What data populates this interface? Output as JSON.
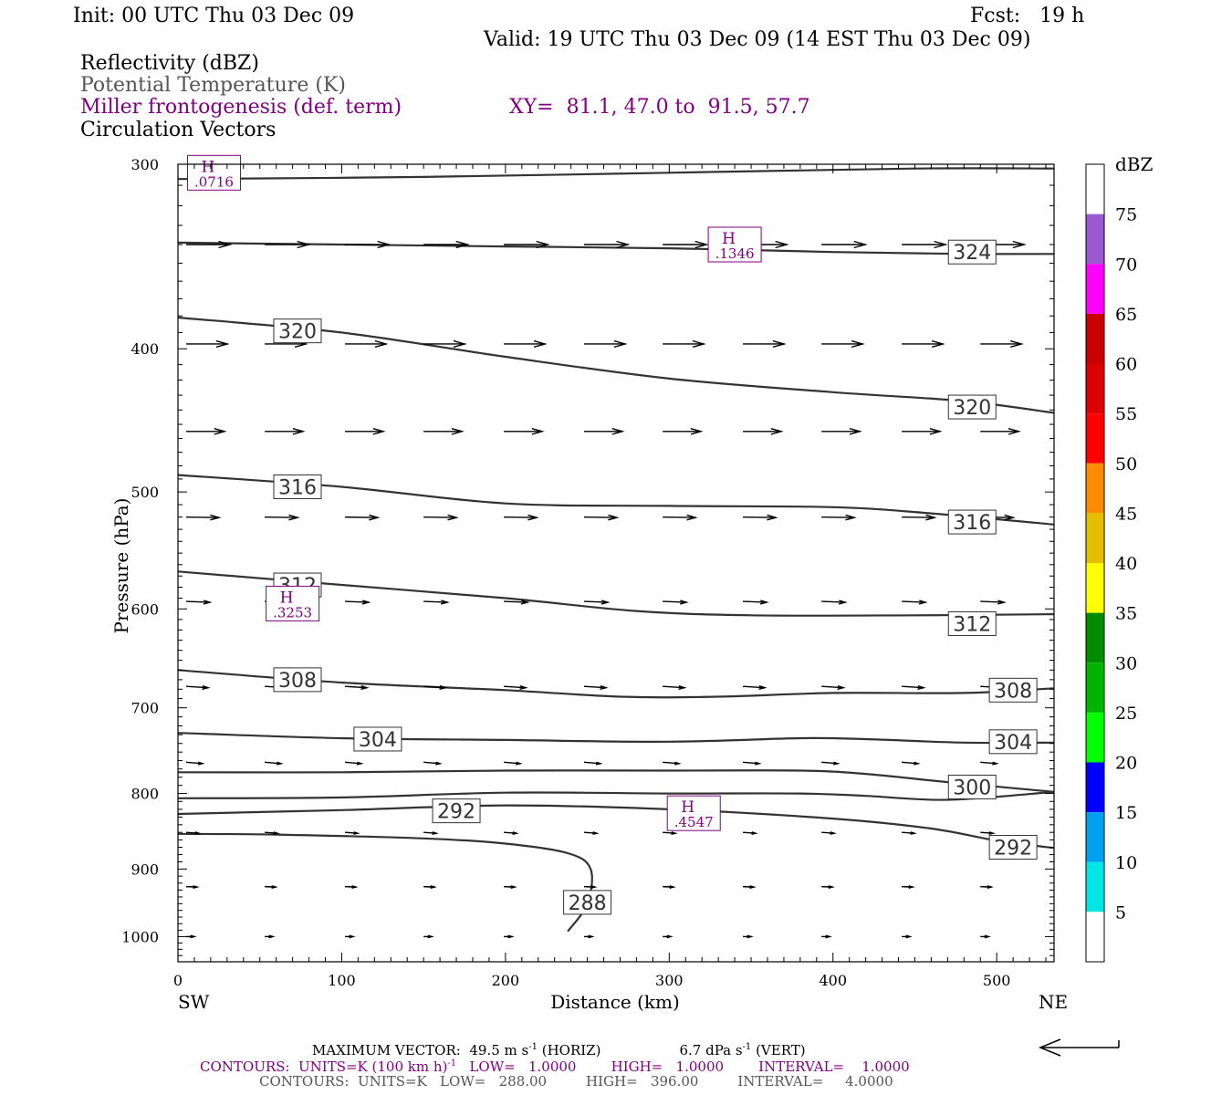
{
  "header": {
    "init": "Init: 00 UTC Thu 03 Dec 09",
    "fcst": "Fcst:   19 h",
    "valid": "Valid: 19 UTC Thu 03 Dec 09 (14 EST Thu 03 Dec 09)",
    "field1": "Reflectivity (dBZ)",
    "field2": "Potential Temperature (K)",
    "field3": "Miller frontogenesis (def. term)",
    "xy": "XY=  81.1, 47.0 to  91.5, 57.7",
    "field4": "Circulation Vectors"
  },
  "colors": {
    "purple": "#800080",
    "gray": "#555555",
    "contour": "#333333"
  },
  "chart_data": {
    "type": "cross-section",
    "xlabel": "Distance (km)",
    "ylabel": "Pressure (hPa)",
    "xlim": [
      0,
      535
    ],
    "ylim": [
      1040,
      300
    ],
    "y_scale": "log (inverted)",
    "x_ticks": [
      0,
      100,
      200,
      300,
      400,
      500
    ],
    "y_ticks": [
      300,
      400,
      500,
      600,
      700,
      800,
      900,
      1000
    ],
    "x_left_label": "SW",
    "x_right_label": "NE",
    "contour_series_name": "Potential Temperature (K)",
    "contours": [
      {
        "label": "288",
        "points": [
          [
            0,
            852
          ],
          [
            60,
            853
          ],
          [
            150,
            858
          ],
          [
            200,
            865
          ],
          [
            238,
            878
          ],
          [
            252,
            900
          ],
          [
            250,
            950
          ],
          [
            238,
            992
          ]
        ]
      },
      {
        "label": "292",
        "points": [
          [
            0,
            826
          ],
          [
            100,
            821
          ],
          [
            200,
            815
          ],
          [
            300,
            820
          ],
          [
            400,
            832
          ],
          [
            460,
            845
          ],
          [
            500,
            861
          ],
          [
            535,
            871
          ]
        ]
      },
      {
        "label": "300",
        "points": [
          [
            0,
            806
          ],
          [
            100,
            805
          ],
          [
            200,
            799
          ],
          [
            300,
            800
          ],
          [
            380,
            800
          ],
          [
            420,
            803
          ],
          [
            470,
            808
          ],
          [
            535,
            798
          ]
        ]
      },
      {
        "label": "300",
        "points": [
          [
            0,
            774
          ],
          [
            100,
            774
          ],
          [
            200,
            772
          ],
          [
            300,
            772
          ],
          [
            380,
            772
          ],
          [
            420,
            776
          ],
          [
            470,
            786
          ],
          [
            535,
            798
          ]
        ]
      },
      {
        "label": "304",
        "points": [
          [
            0,
            728
          ],
          [
            100,
            734
          ],
          [
            200,
            736
          ],
          [
            300,
            738
          ],
          [
            380,
            734
          ],
          [
            420,
            735
          ],
          [
            480,
            739
          ],
          [
            535,
            739
          ]
        ]
      },
      {
        "label": "308",
        "points": [
          [
            0,
            660
          ],
          [
            100,
            673
          ],
          [
            200,
            681
          ],
          [
            270,
            688
          ],
          [
            330,
            688
          ],
          [
            400,
            684
          ],
          [
            480,
            684
          ],
          [
            535,
            679
          ]
        ]
      },
      {
        "label": "312",
        "points": [
          [
            0,
            566
          ],
          [
            100,
            578
          ],
          [
            200,
            590
          ],
          [
            280,
            602
          ],
          [
            350,
            606
          ],
          [
            450,
            606
          ],
          [
            535,
            605
          ]
        ]
      },
      {
        "label": "316",
        "points": [
          [
            0,
            487
          ],
          [
            100,
            496
          ],
          [
            200,
            509
          ],
          [
            300,
            511
          ],
          [
            400,
            512
          ],
          [
            460,
            517
          ],
          [
            535,
            526
          ]
        ]
      },
      {
        "label": "320",
        "points": [
          [
            0,
            381
          ],
          [
            100,
            390
          ],
          [
            200,
            405
          ],
          [
            300,
            419
          ],
          [
            400,
            428
          ],
          [
            480,
            434
          ],
          [
            535,
            442
          ]
        ]
      },
      {
        "label": "324",
        "points": [
          [
            0,
            339
          ],
          [
            100,
            340
          ],
          [
            200,
            341
          ],
          [
            300,
            342
          ],
          [
            400,
            344
          ],
          [
            480,
            345
          ],
          [
            535,
            345
          ]
        ]
      },
      {
        "label": "",
        "points": [
          [
            0,
            307
          ],
          [
            150,
            306
          ],
          [
            300,
            304
          ],
          [
            450,
            302
          ],
          [
            535,
            302
          ]
        ]
      }
    ],
    "contour_labels": [
      {
        "text": "288",
        "x": 250,
        "p": 948
      },
      {
        "text": "292",
        "x": 170,
        "p": 822
      },
      {
        "text": "292",
        "x": 510,
        "p": 870
      },
      {
        "text": "300",
        "x": 485,
        "p": 792
      },
      {
        "text": "304",
        "x": 122,
        "p": 735
      },
      {
        "text": "304",
        "x": 510,
        "p": 738
      },
      {
        "text": "308",
        "x": 73,
        "p": 670
      },
      {
        "text": "308",
        "x": 510,
        "p": 681
      },
      {
        "text": "312",
        "x": 73,
        "p": 578
      },
      {
        "text": "312",
        "x": 485,
        "p": 614
      },
      {
        "text": "316",
        "x": 73,
        "p": 496
      },
      {
        "text": "316",
        "x": 485,
        "p": 524
      },
      {
        "text": "320",
        "x": 73,
        "p": 389
      },
      {
        "text": "320",
        "x": 485,
        "p": 438
      },
      {
        "text": "324",
        "x": 485,
        "p": 344
      }
    ],
    "highs": [
      {
        "letter": "H",
        "value": ".0716",
        "x": 22,
        "p": 304
      },
      {
        "letter": "H",
        "value": ".1346",
        "x": 340,
        "p": 340
      },
      {
        "letter": "H",
        "value": ".3253",
        "x": 70,
        "p": 595
      },
      {
        "letter": "H",
        "value": ".4547",
        "x": 315,
        "p": 825
      }
    ],
    "vector_rows": [
      {
        "p": 340,
        "len": 48,
        "dv": 0
      },
      {
        "p": 397,
        "len": 45,
        "dv": 0
      },
      {
        "p": 455,
        "len": 42,
        "dv": 0
      },
      {
        "p": 520,
        "len": 36,
        "dv": 0.5
      },
      {
        "p": 593,
        "len": 26,
        "dv": 1
      },
      {
        "p": 677,
        "len": 24,
        "dv": 1.5
      },
      {
        "p": 762,
        "len": 18,
        "dv": 1.5
      },
      {
        "p": 850,
        "len": 14,
        "dv": 1
      },
      {
        "p": 925,
        "len": 12,
        "dv": 0.5
      },
      {
        "p": 1000,
        "len": 9,
        "dv": 0
      }
    ],
    "vector_x": [
      5,
      53,
      102,
      150,
      199,
      248,
      296,
      345,
      393,
      442,
      490
    ],
    "colorbar": {
      "title": "dBZ",
      "labels": [
        "75",
        "70",
        "65",
        "60",
        "55",
        "50",
        "45",
        "40",
        "35",
        "30",
        "25",
        "20",
        "15",
        "10",
        "5"
      ],
      "colors_top_to_bottom": [
        "#ffffff",
        "#9b59d0",
        "#ff00ff",
        "#c80000",
        "#dc0000",
        "#ff0000",
        "#ff8c00",
        "#e6be00",
        "#ffff00",
        "#008c00",
        "#00b400",
        "#00ff00",
        "#0000ff",
        "#00a0f0",
        "#00e6e6",
        "#ffffff"
      ]
    }
  },
  "footer": {
    "max_vector": "MAXIMUM VECTOR:  49.5 m s",
    "max_vector_sup": "-1",
    "horiz": " (HORIZ)",
    "vert": "6.7 dPa s",
    "vert_sup": "-1",
    "vert_tail": " (VERT)",
    "contours1_a": "CONTOURS:  UNITS=K (100 km h)",
    "contours1_sup": "-1",
    "contours1_b": "   LOW=   1.0000        HIGH=   1.0000        INTERVAL=    1.0000",
    "contours2": "CONTOURS:  UNITS=K   LOW=   288.00         HIGH=   396.00         INTERVAL=     4.0000"
  }
}
